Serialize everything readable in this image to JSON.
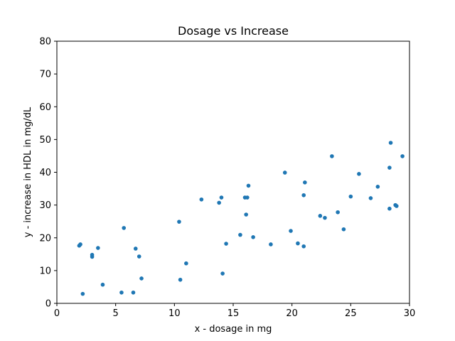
{
  "chart_data": {
    "type": "scatter",
    "title": "Dosage vs Increase",
    "xlabel": "x - dosage in mg",
    "ylabel": "y - increase in HDL in mg/dL",
    "xlim": [
      0,
      30
    ],
    "ylim": [
      0,
      80
    ],
    "xticks": [
      0,
      5,
      10,
      15,
      20,
      25,
      30
    ],
    "yticks": [
      0,
      10,
      20,
      30,
      40,
      50,
      60,
      70,
      80
    ],
    "grid": false,
    "marker_color": "#1f77b4",
    "points": [
      {
        "x": 1.9,
        "y": 17.6
      },
      {
        "x": 2.0,
        "y": 18.0
      },
      {
        "x": 2.2,
        "y": 2.9
      },
      {
        "x": 3.0,
        "y": 14.2
      },
      {
        "x": 3.0,
        "y": 14.8
      },
      {
        "x": 3.5,
        "y": 16.9
      },
      {
        "x": 3.9,
        "y": 5.7
      },
      {
        "x": 5.5,
        "y": 3.3
      },
      {
        "x": 5.7,
        "y": 23.0
      },
      {
        "x": 6.5,
        "y": 3.3
      },
      {
        "x": 6.7,
        "y": 16.7
      },
      {
        "x": 7.0,
        "y": 14.3
      },
      {
        "x": 7.2,
        "y": 7.6
      },
      {
        "x": 10.4,
        "y": 24.9
      },
      {
        "x": 10.5,
        "y": 7.2
      },
      {
        "x": 11.0,
        "y": 12.2
      },
      {
        "x": 12.3,
        "y": 31.7
      },
      {
        "x": 13.8,
        "y": 30.7
      },
      {
        "x": 14.0,
        "y": 32.3
      },
      {
        "x": 14.1,
        "y": 9.1
      },
      {
        "x": 14.4,
        "y": 18.2
      },
      {
        "x": 15.6,
        "y": 20.9
      },
      {
        "x": 16.0,
        "y": 32.3
      },
      {
        "x": 16.1,
        "y": 27.1
      },
      {
        "x": 16.2,
        "y": 32.3
      },
      {
        "x": 16.3,
        "y": 35.9
      },
      {
        "x": 16.7,
        "y": 20.2
      },
      {
        "x": 18.2,
        "y": 18.0
      },
      {
        "x": 19.4,
        "y": 39.9
      },
      {
        "x": 19.9,
        "y": 22.1
      },
      {
        "x": 20.5,
        "y": 18.3
      },
      {
        "x": 21.0,
        "y": 33.0
      },
      {
        "x": 21.0,
        "y": 17.4
      },
      {
        "x": 21.1,
        "y": 36.9
      },
      {
        "x": 22.4,
        "y": 26.7
      },
      {
        "x": 22.8,
        "y": 26.1
      },
      {
        "x": 23.4,
        "y": 44.9
      },
      {
        "x": 23.9,
        "y": 27.8
      },
      {
        "x": 24.4,
        "y": 22.6
      },
      {
        "x": 25.0,
        "y": 32.6
      },
      {
        "x": 25.7,
        "y": 39.5
      },
      {
        "x": 26.7,
        "y": 32.1
      },
      {
        "x": 27.3,
        "y": 35.6
      },
      {
        "x": 28.3,
        "y": 41.4
      },
      {
        "x": 28.3,
        "y": 28.9
      },
      {
        "x": 28.4,
        "y": 49.0
      },
      {
        "x": 28.8,
        "y": 30.0
      },
      {
        "x": 28.9,
        "y": 29.7
      },
      {
        "x": 29.4,
        "y": 44.9
      }
    ]
  }
}
